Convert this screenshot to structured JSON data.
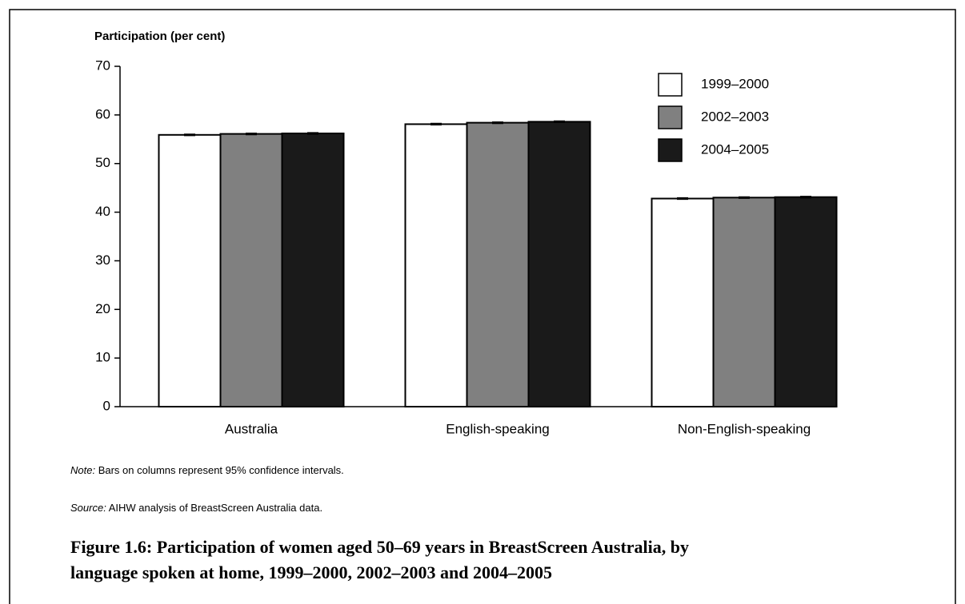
{
  "chart_data": {
    "type": "bar",
    "ylabel": "Participation (per cent)",
    "categories": [
      "Australia",
      "English-speaking",
      "Non-English-speaking"
    ],
    "series": [
      {
        "name": "1999–2000",
        "color": "#ffffff",
        "values": [
          55.9,
          58.1,
          42.8
        ],
        "errors": [
          0.1,
          0.1,
          0.1
        ]
      },
      {
        "name": "2002–2003",
        "color": "#808080",
        "values": [
          56.1,
          58.4,
          43.0
        ],
        "errors": [
          0.1,
          0.1,
          0.1
        ]
      },
      {
        "name": "2004–2005",
        "color": "#1a1a1a",
        "values": [
          56.2,
          58.6,
          43.1
        ],
        "errors": [
          0.1,
          0.1,
          0.1
        ]
      }
    ],
    "ylim": [
      0,
      70
    ],
    "yticks": [
      0,
      10,
      20,
      30,
      40,
      50,
      60,
      70
    ],
    "note": {
      "label": "Note:",
      "text": " Bars on columns represent 95% confidence intervals."
    },
    "source": {
      "label": "Source:",
      "text": " AIHW analysis of BreastScreen Australia data."
    },
    "caption": [
      "Figure 1.6: Participation of women aged 50–69 years in BreastScreen Australia, by",
      "language spoken at home, 1999–2000, 2002–2003 and 2004–2005"
    ]
  }
}
